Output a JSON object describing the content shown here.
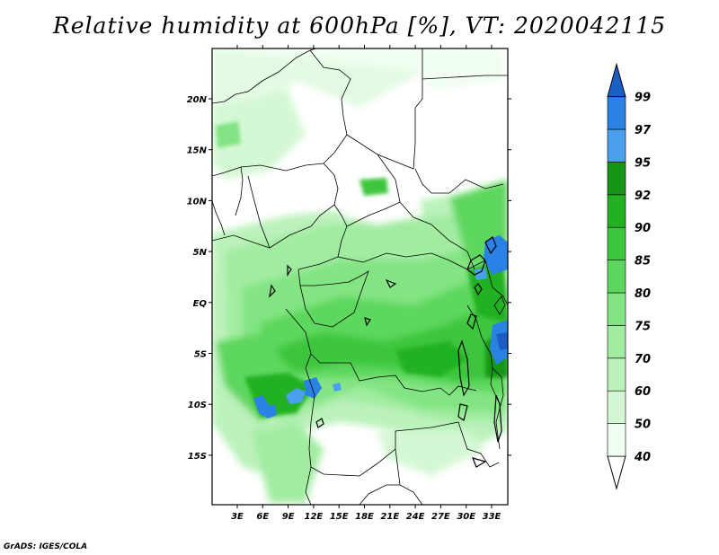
{
  "title": "Relative humidity at 600hPa [%], VT: 2020042115",
  "credit": "GrADS: IGES/COLA",
  "lat_labels": [
    "20N",
    "15N",
    "10N",
    "5N",
    "EQ",
    "5S",
    "10S",
    "15S"
  ],
  "lon_labels": [
    "3E",
    "6E",
    "9E",
    "12E",
    "15E",
    "18E",
    "21E",
    "24E",
    "27E",
    "30E",
    "33E"
  ],
  "colorbar": {
    "levels": [
      "40",
      "50",
      "60",
      "70",
      "75",
      "80",
      "85",
      "90",
      "92",
      "95",
      "97",
      "99"
    ],
    "colors": [
      "#f0fff0",
      "#d4f8d4",
      "#bbf2bb",
      "#a2eca2",
      "#82e482",
      "#5dd75d",
      "#3cc63c",
      "#21b121",
      "#159615",
      "#4aa0ee",
      "#2a82e4",
      "#1c5fc4"
    ]
  }
}
